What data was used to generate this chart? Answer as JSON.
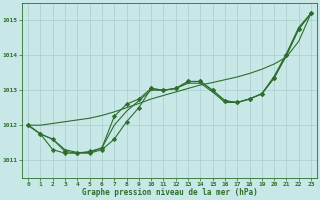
{
  "x": [
    0,
    1,
    2,
    3,
    4,
    5,
    6,
    7,
    8,
    9,
    10,
    11,
    12,
    13,
    14,
    15,
    16,
    17,
    18,
    19,
    20,
    21,
    22,
    23
  ],
  "line_marked1": [
    1012.0,
    1011.75,
    1011.6,
    1011.25,
    1011.2,
    1011.2,
    1011.3,
    1011.6,
    1012.1,
    1012.5,
    1013.05,
    1013.0,
    1013.05,
    1013.25,
    1013.25,
    1013.0,
    1012.7,
    1012.65,
    1012.75,
    1012.9,
    1013.35,
    1014.0,
    1014.75,
    1015.2
  ],
  "line_marked2": [
    1012.0,
    1011.75,
    1011.3,
    1011.2,
    1011.2,
    1011.25,
    1011.35,
    1012.25,
    1012.6,
    1012.75,
    1013.05,
    1013.0,
    1013.05,
    1013.25,
    1013.25,
    1013.0,
    1012.7,
    1012.65,
    1012.75,
    1012.9,
    1013.35,
    1014.0,
    1014.75,
    1015.2
  ],
  "line_smooth1": [
    1012.0,
    1011.75,
    1011.6,
    1011.3,
    1011.22,
    1011.22,
    1011.35,
    1012.0,
    1012.4,
    1012.7,
    1013.0,
    1013.0,
    1013.05,
    1013.2,
    1013.2,
    1012.95,
    1012.65,
    1012.65,
    1012.75,
    1012.9,
    1013.4,
    1014.05,
    1014.8,
    1015.2
  ],
  "line_smooth2": [
    1012.0,
    1012.0,
    1012.05,
    1012.1,
    1012.15,
    1012.2,
    1012.28,
    1012.38,
    1012.5,
    1012.62,
    1012.75,
    1012.85,
    1012.95,
    1013.05,
    1013.15,
    1013.22,
    1013.3,
    1013.38,
    1013.48,
    1013.6,
    1013.75,
    1013.95,
    1014.4,
    1015.2
  ],
  "line_color": "#2d6e2d",
  "bg_color": "#c8e8e8",
  "grid_color": "#a8cece",
  "xlabel": "Graphe pression niveau de la mer (hPa)",
  "ylim": [
    1010.5,
    1015.5
  ],
  "xlim": [
    -0.5,
    23.5
  ],
  "yticks": [
    1011,
    1012,
    1013,
    1014,
    1015
  ],
  "xticks": [
    0,
    1,
    2,
    3,
    4,
    5,
    6,
    7,
    8,
    9,
    10,
    11,
    12,
    13,
    14,
    15,
    16,
    17,
    18,
    19,
    20,
    21,
    22,
    23
  ]
}
